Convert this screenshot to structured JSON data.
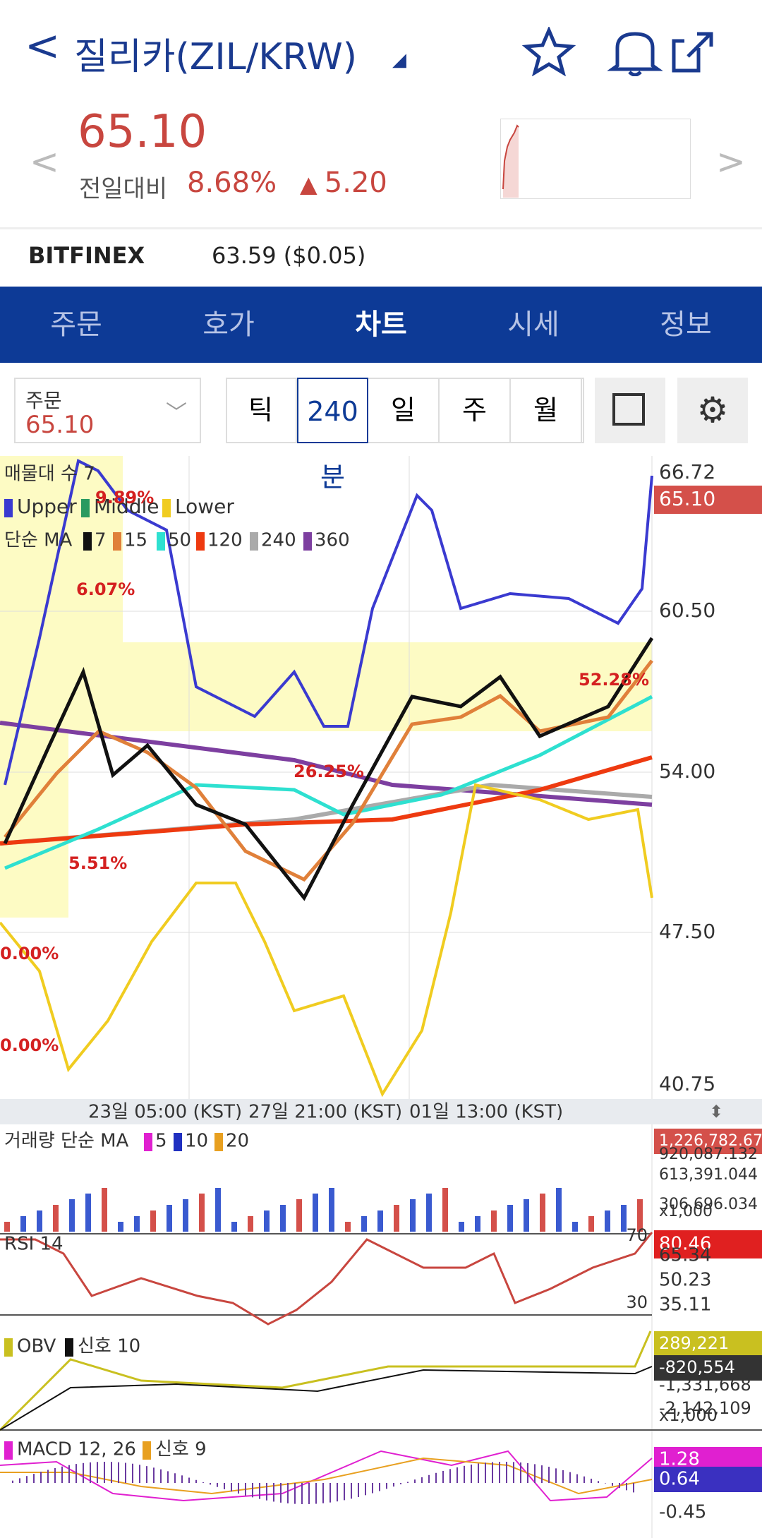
{
  "header": {
    "title": "질리카(ZIL/KRW)"
  },
  "price": {
    "value": "65.10",
    "change_label": "전일대비",
    "change_pct": "8.68%",
    "change_abs": "5.20"
  },
  "exchange": {
    "name": "BITFINEX",
    "price": "63.59 ($0.05)"
  },
  "tabs": [
    "주문",
    "호가",
    "차트",
    "시세",
    "정보"
  ],
  "order_box": {
    "label": "주문",
    "value": "65.10"
  },
  "periods": [
    "틱",
    "240분",
    "일",
    "주",
    "월"
  ],
  "main_chart": {
    "volume_profile": "매물대 수 7",
    "bollinger": [
      "Upper",
      "Middle",
      "Lower"
    ],
    "ma_label": "단순 MA",
    "ma": [
      "7",
      "15",
      "50",
      "120",
      "240",
      "360"
    ],
    "y_labels": [
      "66.72",
      "65.10",
      "60.50",
      "54.00",
      "47.50",
      "40.75"
    ],
    "annotations": [
      "9.89%",
      "6.07%",
      "26.25%",
      "52.28%",
      "5.51%",
      "0.00%",
      "0.00%"
    ],
    "x_labels": [
      "23일 05:00 (KST)",
      "27일 21:00 (KST)",
      "01일 13:00 (KST)"
    ]
  },
  "volume": {
    "label": "거래량 단순 MA",
    "ma": [
      "5",
      "10",
      "20"
    ],
    "y_labels": [
      "1,226,782.672",
      "920,087.132",
      "613,391.044",
      "306,696.034",
      "x1,000"
    ]
  },
  "rsi": {
    "label": "RSI 14",
    "levels": [
      "70",
      "30"
    ],
    "y_labels": [
      "80.46",
      "65.34",
      "50.23",
      "35.11"
    ]
  },
  "obv": {
    "label": "OBV",
    "signal": "신호 10",
    "y_labels": [
      "289,221",
      "-820,554",
      "-1,331,668",
      "-2,142,109",
      "x1,000"
    ]
  },
  "macd": {
    "label": "MACD 12, 26",
    "signal": "신호 9",
    "y_labels": [
      "1.28",
      "0.64",
      "-0.45"
    ]
  }
}
